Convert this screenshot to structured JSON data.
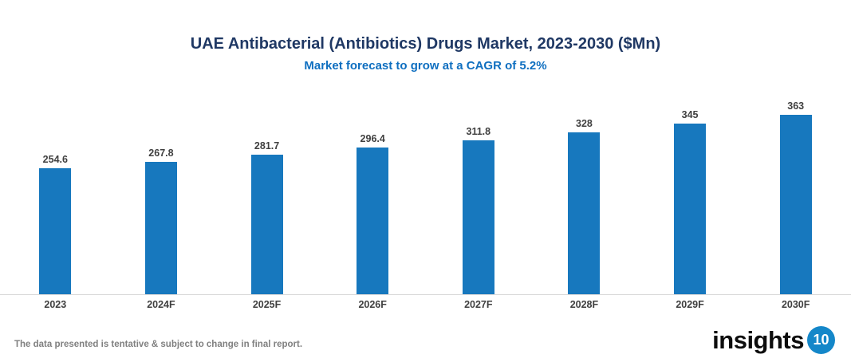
{
  "header": {
    "title": "UAE Antibacterial (Antibiotics) Drugs Market, 2023-2030 ($Mn)",
    "subtitle": "Market forecast to grow at a CAGR of 5.2%"
  },
  "chart_data": {
    "type": "bar",
    "title": "UAE Antibacterial (Antibiotics) Drugs Market, 2023-2030 ($Mn)",
    "subtitle": "Market forecast to grow at a CAGR of 5.2%",
    "categories": [
      "2023",
      "2024F",
      "2025F",
      "2026F",
      "2027F",
      "2028F",
      "2029F",
      "2030F"
    ],
    "values": [
      254.6,
      267.8,
      281.7,
      296.4,
      311.8,
      328,
      345,
      363
    ],
    "xlabel": "",
    "ylabel": "",
    "ylim": [
      0,
      380
    ],
    "grid": false,
    "legend": false,
    "data_labels": true,
    "bar_color": "#1778BE",
    "label_color": "#404040",
    "axis_line_color": "#D9D9D9",
    "title_color": "#1F3864",
    "subtitle_color": "#0F6FC0"
  },
  "footer": {
    "note": "The data presented is tentative & subject to change in final report.",
    "logo": {
      "text": "insights",
      "badge": "10",
      "badge_color": "#1487C9"
    }
  }
}
